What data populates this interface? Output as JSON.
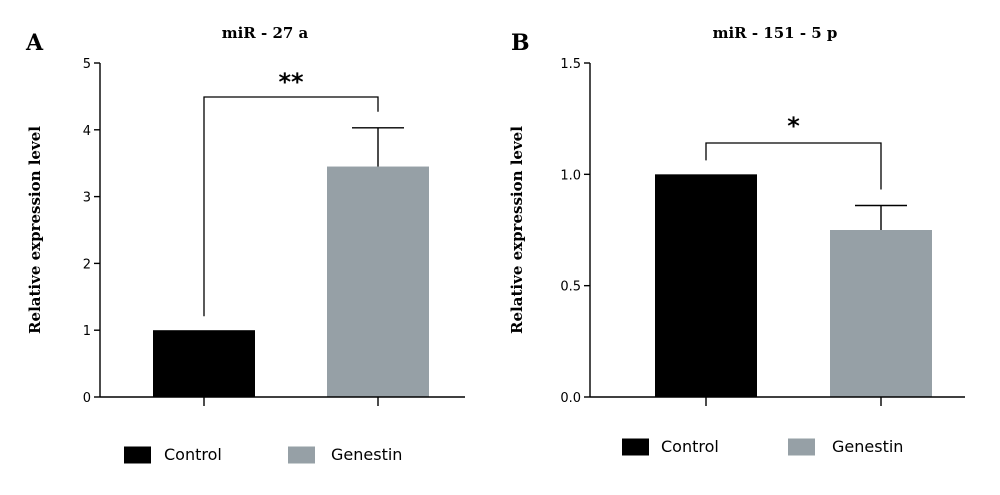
{
  "panels": [
    {
      "label": "A",
      "chart_data": {
        "type": "bar",
        "title": "miR - 27 a",
        "ylabel": "Relative expression level",
        "xlabel": "",
        "categories": [
          "Control",
          "Genestin"
        ],
        "values": [
          1.0,
          3.45
        ],
        "error": [
          0,
          0.58
        ],
        "ylim": [
          0,
          5
        ],
        "yticks": [
          "0",
          "1",
          "2",
          "3",
          "4",
          "5"
        ],
        "colors": [
          "#000000",
          "#96a0a6"
        ],
        "significance": "**",
        "legend": [
          "Control",
          "Genestin"
        ],
        "legend_position": "bottom"
      }
    },
    {
      "label": "B",
      "chart_data": {
        "type": "bar",
        "title": "miR - 151 - 5 p",
        "ylabel": "Relative expression level",
        "xlabel": "",
        "categories": [
          "Control",
          "Genestin"
        ],
        "values": [
          1.0,
          0.75
        ],
        "error": [
          0,
          0.11
        ],
        "ylim": [
          0,
          1.5
        ],
        "yticks": [
          "0.0",
          "0.5",
          "1.0",
          "1.5"
        ],
        "colors": [
          "#000000",
          "#96a0a6"
        ],
        "significance": "*",
        "legend": [
          "Control",
          "Genestin"
        ],
        "legend_position": "bottom"
      }
    }
  ]
}
